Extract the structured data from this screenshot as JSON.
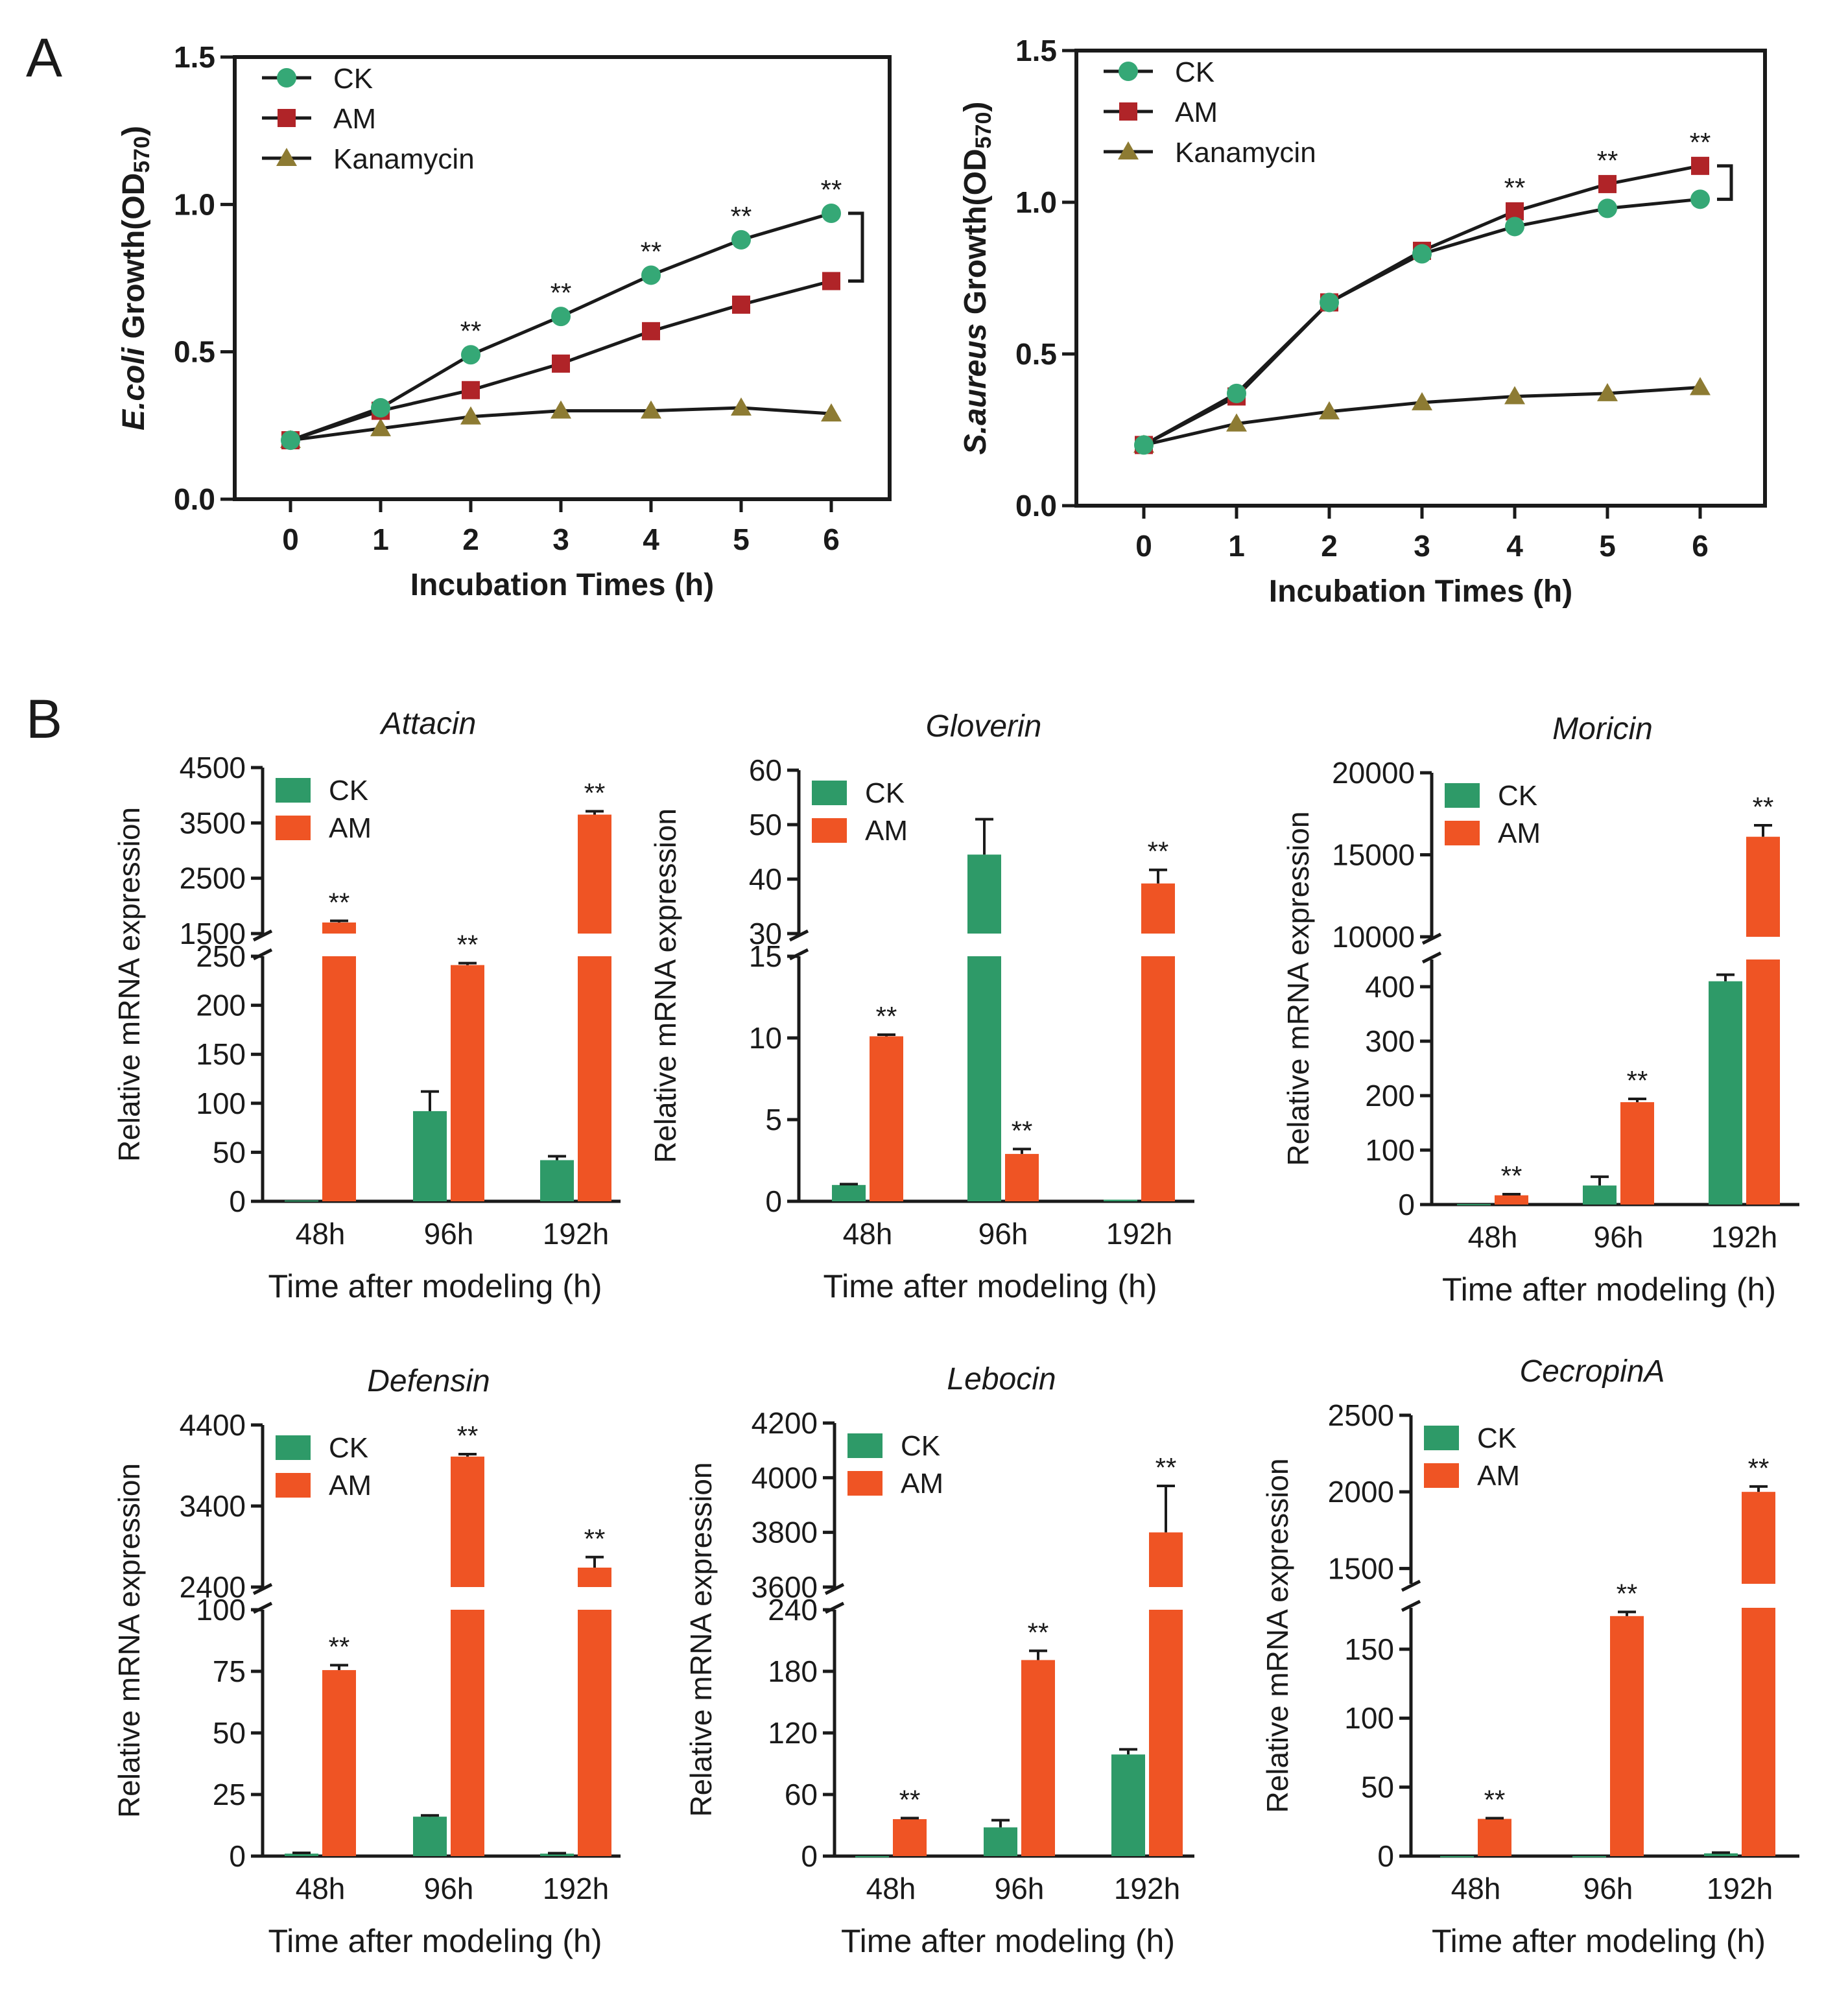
{
  "panels": {
    "a": "A",
    "b": "B"
  },
  "colors": {
    "ck": "#2e9a68",
    "am": "#ef5424",
    "am_line": "#b02428",
    "kana": "#8d7b33",
    "ck_marker": "#35a876",
    "axis": "#1a1a1a"
  },
  "chart_data": [
    {
      "id": "A1",
      "type": "line",
      "ylabel_italic": "E.coli",
      "ylabel_rest": " Growth(OD",
      "ylabel_sub": "570",
      "ylabel_close": ")",
      "xlabel": "Incubation Times (h)",
      "x": [
        0,
        1,
        2,
        3,
        4,
        5,
        6
      ],
      "xticks": [
        "0",
        "1",
        "2",
        "3",
        "4",
        "5",
        "6"
      ],
      "ylim": [
        0,
        1.5
      ],
      "yticks": [
        "0.0",
        "0.5",
        "1.0",
        "1.5"
      ],
      "series": [
        {
          "name": "CK",
          "values": [
            0.2,
            0.31,
            0.49,
            0.62,
            0.76,
            0.88,
            0.97
          ],
          "marker": "circle",
          "color": "#35a876"
        },
        {
          "name": "AM",
          "values": [
            0.2,
            0.3,
            0.37,
            0.46,
            0.57,
            0.66,
            0.74
          ],
          "marker": "square",
          "color": "#b02428"
        },
        {
          "name": "Kanamycin",
          "values": [
            0.2,
            0.24,
            0.28,
            0.3,
            0.3,
            0.31,
            0.29
          ],
          "marker": "triangle",
          "color": "#8d7b33"
        }
      ],
      "significance": [
        {
          "x": 2,
          "label": "**"
        },
        {
          "x": 3,
          "label": "**"
        },
        {
          "x": 4,
          "label": "**"
        },
        {
          "x": 5,
          "label": "**"
        },
        {
          "x": 6,
          "label": "**"
        }
      ],
      "bracket": {
        "x": 6,
        "from": 0.74,
        "to": 0.97
      }
    },
    {
      "id": "A2",
      "type": "line",
      "ylabel_italic": "S.aureus",
      "ylabel_rest": " Growth(OD",
      "ylabel_sub": "570",
      "ylabel_close": ")",
      "xlabel": "Incubation Times (h)",
      "x": [
        0,
        1,
        2,
        3,
        4,
        5,
        6
      ],
      "xticks": [
        "0",
        "1",
        "2",
        "3",
        "4",
        "5",
        "6"
      ],
      "ylim": [
        0,
        1.5
      ],
      "yticks": [
        "0.0",
        "0.5",
        "1.0",
        "1.5"
      ],
      "series": [
        {
          "name": "CK",
          "values": [
            0.2,
            0.37,
            0.67,
            0.83,
            0.92,
            0.98,
            1.01
          ],
          "marker": "circle",
          "color": "#35a876"
        },
        {
          "name": "AM",
          "values": [
            0.2,
            0.36,
            0.67,
            0.84,
            0.97,
            1.06,
            1.12
          ],
          "marker": "square",
          "color": "#b02428"
        },
        {
          "name": "Kanamycin",
          "values": [
            0.2,
            0.27,
            0.31,
            0.34,
            0.36,
            0.37,
            0.39
          ],
          "marker": "triangle",
          "color": "#8d7b33"
        }
      ],
      "significance": [
        {
          "x": 4,
          "label": "**"
        },
        {
          "x": 5,
          "label": "**"
        },
        {
          "x": 6,
          "label": "**"
        }
      ],
      "bracket": {
        "x": 6,
        "from": 1.01,
        "to": 1.12
      }
    },
    {
      "id": "B1",
      "type": "bar",
      "title": "Attacin",
      "ylabel": "Relative mRNA expression",
      "xlabel": "Time after modeling (h)",
      "categories": [
        "48h",
        "96h",
        "192h"
      ],
      "series": [
        {
          "name": "CK",
          "values": [
            1,
            92,
            42
          ],
          "errors": [
            0,
            20,
            4
          ]
        },
        {
          "name": "AM",
          "values": [
            1700,
            241,
            3650
          ],
          "errors": [
            30,
            2,
            60
          ]
        }
      ],
      "significance": [
        "**",
        "**",
        "**"
      ],
      "lower_axis": {
        "range": [
          0,
          250
        ],
        "ticks": [
          "0",
          "50",
          "100",
          "150",
          "200",
          "250"
        ]
      },
      "upper_axis": {
        "range": [
          1500,
          4500
        ],
        "ticks": [
          "1500",
          "2500",
          "3500",
          "4500"
        ]
      }
    },
    {
      "id": "B2",
      "type": "bar",
      "title": "Gloverin",
      "ylabel": "Relative mRNA expression",
      "xlabel": "Time after modeling (h)",
      "categories": [
        "48h",
        "96h",
        "192h"
      ],
      "series": [
        {
          "name": "CK",
          "values": [
            1.0,
            44.5,
            0.1
          ],
          "errors": [
            0.05,
            6.5,
            0
          ]
        },
        {
          "name": "AM",
          "values": [
            10.1,
            2.9,
            39.2
          ],
          "errors": [
            0.1,
            0.3,
            2.5
          ]
        }
      ],
      "significance": [
        "**",
        "**",
        "**"
      ],
      "lower_axis": {
        "range": [
          0,
          15
        ],
        "ticks": [
          "0",
          "5",
          "10",
          "15"
        ]
      },
      "upper_axis": {
        "range": [
          30,
          60
        ],
        "ticks": [
          "30",
          "40",
          "50",
          "60"
        ]
      }
    },
    {
      "id": "B3",
      "type": "bar",
      "title": "Moricin",
      "ylabel": "Relative mRNA expression",
      "xlabel": "Time after modeling (h)",
      "categories": [
        "48h",
        "96h",
        "192h"
      ],
      "series": [
        {
          "name": "CK",
          "values": [
            1,
            35,
            410
          ],
          "errors": [
            0,
            16,
            12
          ]
        },
        {
          "name": "AM",
          "values": [
            17,
            188,
            16100
          ],
          "errors": [
            2,
            6,
            700
          ]
        }
      ],
      "significance": [
        "**",
        "**",
        "**"
      ],
      "lower_axis": {
        "range": [
          0,
          450
        ],
        "ticks": [
          "0",
          "100",
          "200",
          "300",
          "400"
        ]
      },
      "upper_axis": {
        "range": [
          10000,
          20000
        ],
        "ticks": [
          "10000",
          "15000",
          "20000"
        ]
      }
    },
    {
      "id": "B4",
      "type": "bar",
      "title": "Defensin",
      "ylabel": "Relative mRNA expression",
      "xlabel": "Time after modeling (h)",
      "categories": [
        "48h",
        "96h",
        "192h"
      ],
      "series": [
        {
          "name": "CK",
          "values": [
            1,
            16,
            1
          ],
          "errors": [
            0.3,
            0.5,
            0.2
          ]
        },
        {
          "name": "AM",
          "values": [
            75.5,
            4010,
            2640
          ],
          "errors": [
            2,
            30,
            130
          ]
        }
      ],
      "significance": [
        "**",
        "**",
        "**"
      ],
      "lower_axis": {
        "range": [
          0,
          100
        ],
        "ticks": [
          "0",
          "25",
          "50",
          "75",
          "100"
        ]
      },
      "upper_axis": {
        "range": [
          2400,
          4400
        ],
        "ticks": [
          "2400",
          "3400",
          "4400"
        ]
      }
    },
    {
      "id": "B5",
      "type": "bar",
      "title": "Lebocin",
      "ylabel": "Relative mRNA expression",
      "xlabel": "Time after modeling (h)",
      "categories": [
        "48h",
        "96h",
        "192h"
      ],
      "series": [
        {
          "name": "CK",
          "values": [
            0,
            28,
            99
          ],
          "errors": [
            0,
            7,
            5
          ]
        },
        {
          "name": "AM",
          "values": [
            36,
            191,
            3800
          ],
          "errors": [
            1,
            9,
            170
          ]
        }
      ],
      "significance": [
        "**",
        "**",
        "**"
      ],
      "lower_axis": {
        "range": [
          0,
          240
        ],
        "ticks": [
          "0",
          "60",
          "120",
          "180",
          "240"
        ]
      },
      "upper_axis": {
        "range": [
          3600,
          4200
        ],
        "ticks": [
          "3600",
          "3800",
          "4000",
          "4200"
        ]
      }
    },
    {
      "id": "B6",
      "type": "bar",
      "title": "CecropinA",
      "ylabel": "Relative mRNA expression",
      "xlabel": "Time after modeling (h)",
      "categories": [
        "48h",
        "96h",
        "192h"
      ],
      "series": [
        {
          "name": "CK",
          "values": [
            0,
            0,
            2
          ],
          "errors": [
            0,
            0,
            0.5
          ]
        },
        {
          "name": "AM",
          "values": [
            27,
            174,
            2000
          ],
          "errors": [
            0.5,
            3,
            35
          ]
        }
      ],
      "significance": [
        "**",
        "**",
        "**"
      ],
      "lower_axis": {
        "range": [
          0,
          180
        ],
        "ticks": [
          "0",
          "50",
          "100",
          "150"
        ]
      },
      "upper_axis": {
        "range": [
          1400,
          2500
        ],
        "ticks": [
          "1500",
          "2000",
          "2500"
        ]
      }
    }
  ]
}
